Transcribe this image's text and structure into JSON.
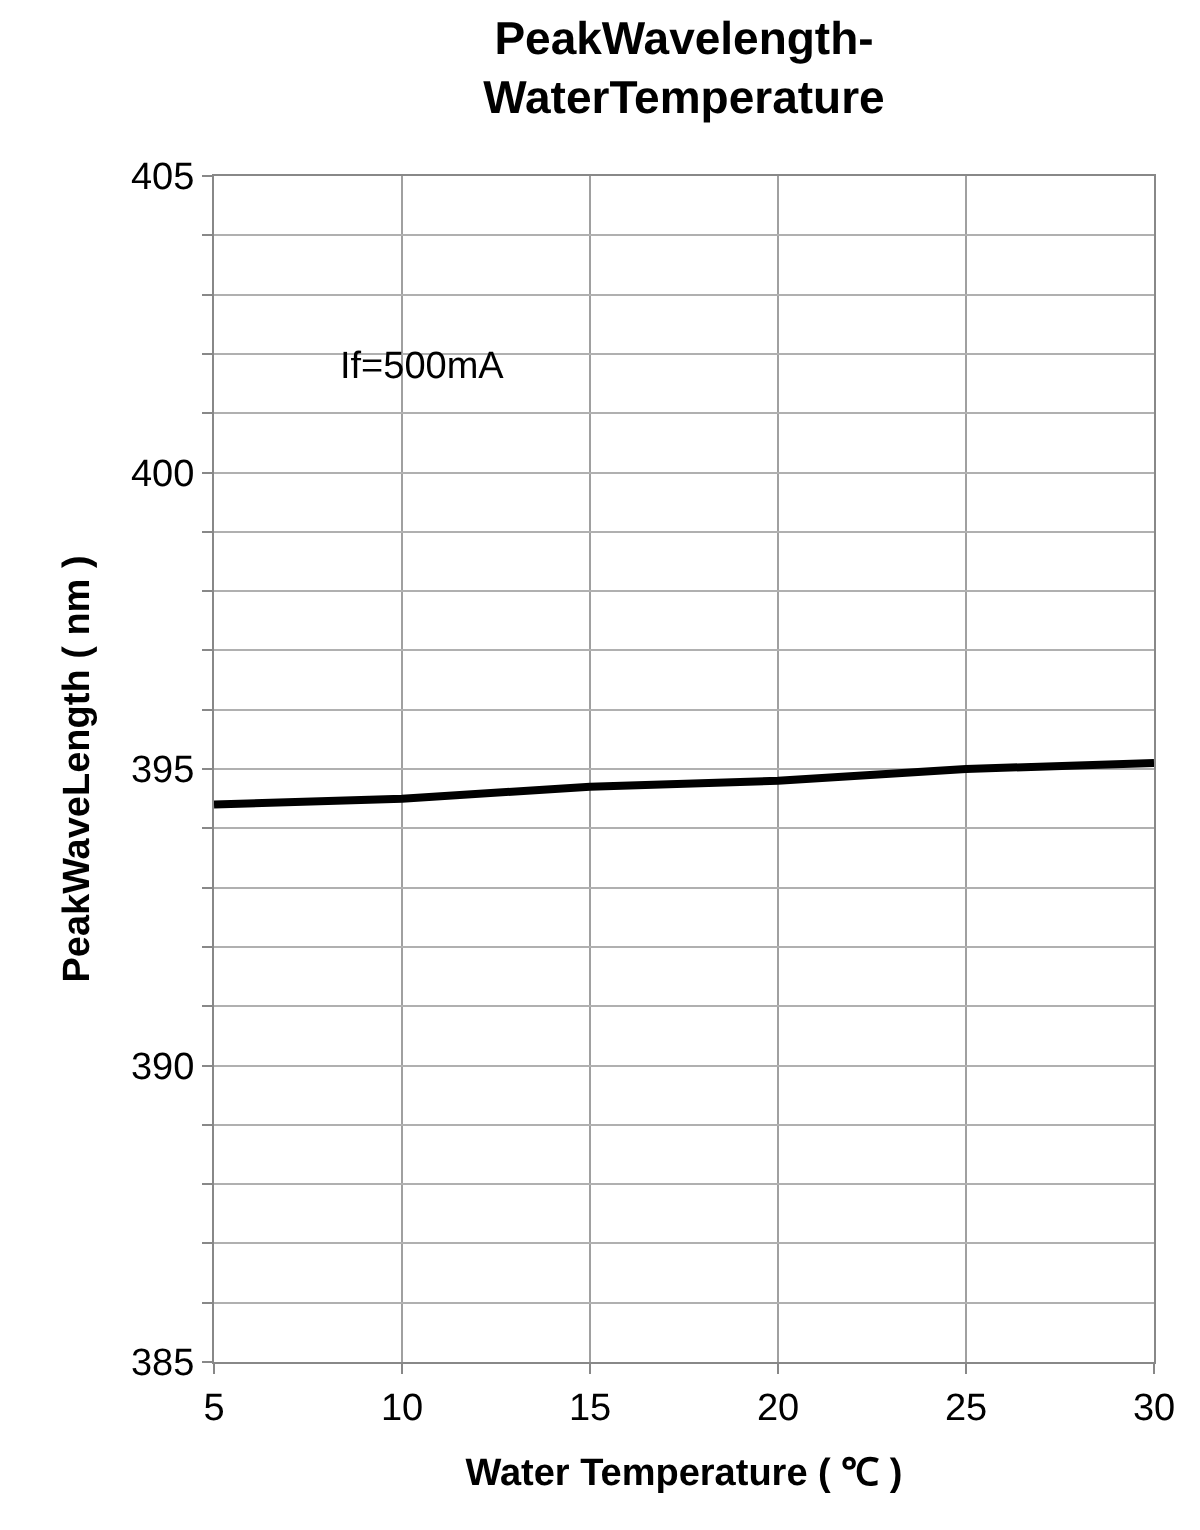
{
  "chart_data": {
    "type": "line",
    "title": "PeakWavelength-\nWaterTemperature",
    "xlabel": "Water Temperature ( ℃ )",
    "ylabel": "PeakWaveLength ( nm )",
    "x": [
      5,
      10,
      15,
      20,
      25,
      30
    ],
    "series": [
      {
        "color": "#000000",
        "values": [
          394.4,
          394.5,
          394.7,
          394.8,
          395.0,
          395.1
        ]
      }
    ],
    "xlim": [
      5,
      30
    ],
    "xticks": [
      5,
      10,
      15,
      20,
      25,
      30
    ],
    "ylim": [
      385,
      405
    ],
    "yticks": [
      385,
      {
        "value": 386,
        "label": null
      },
      {
        "value": 387,
        "label": null
      },
      {
        "value": 388,
        "label": null
      },
      {
        "value": 389,
        "label": null
      },
      390,
      {
        "value": 391,
        "label": null
      },
      {
        "value": 392,
        "label": null
      },
      {
        "value": 393,
        "label": null
      },
      {
        "value": 394,
        "label": null
      },
      395,
      {
        "value": 396,
        "label": null
      },
      {
        "value": 397,
        "label": null
      },
      {
        "value": 398,
        "label": null
      },
      {
        "value": 399,
        "label": null
      },
      400,
      {
        "value": 401,
        "label": null
      },
      {
        "value": 402,
        "label": null
      },
      {
        "value": 403,
        "label": null
      },
      {
        "value": 404,
        "label": null
      },
      405
    ],
    "grid": true,
    "marker": "none",
    "line_style": "solid",
    "annotations": [
      "If=500mA"
    ]
  }
}
